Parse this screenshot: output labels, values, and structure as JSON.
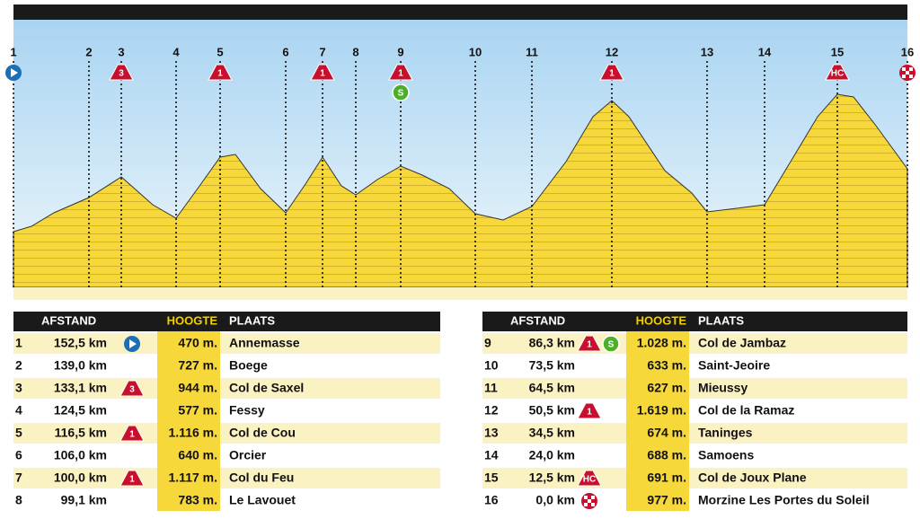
{
  "tables": [
    {
      "headers": {
        "afstand": "AFSTAND",
        "hoogte": "HOOGTE",
        "plaats": "PLAATS"
      },
      "rows": [
        {
          "nr": "1",
          "afstand": "152,5 km",
          "hoogte": "470 m.",
          "plaats": "Annemasse"
        },
        {
          "nr": "2",
          "afstand": "139,0 km",
          "hoogte": "727 m.",
          "plaats": "Boege"
        },
        {
          "nr": "3",
          "afstand": "133,1 km",
          "climb": "3",
          "hoogte": "944 m.",
          "plaats": "Col de Saxel"
        },
        {
          "nr": "4",
          "afstand": "124,5 km",
          "hoogte": "577 m.",
          "plaats": "Fessy"
        },
        {
          "nr": "5",
          "afstand": "116,5 km",
          "climb": "1",
          "hoogte": "1.116 m.",
          "plaats": "Col de Cou"
        },
        {
          "nr": "6",
          "afstand": "106,0 km",
          "hoogte": "640 m.",
          "plaats": "Orcier"
        },
        {
          "nr": "7",
          "afstand": "100,0 km",
          "climb": "1",
          "hoogte": "1.117 m.",
          "plaats": "Col du Feu"
        },
        {
          "nr": "8",
          "afstand": "99,1 km",
          "hoogte": "783 m.",
          "plaats": "Le Lavouet"
        }
      ]
    },
    {
      "headers": {
        "afstand": "AFSTAND",
        "hoogte": "HOOGTE",
        "plaats": "PLAATS"
      },
      "rows": [
        {
          "nr": "9",
          "afstand": "86,3 km",
          "climb": "1",
          "sprint": "S",
          "hoogte": "1.028 m.",
          "plaats": "Col de Jambaz"
        },
        {
          "nr": "10",
          "afstand": "73,5 km",
          "hoogte": "633 m.",
          "plaats": "Saint-Jeoire"
        },
        {
          "nr": "11",
          "afstand": "64,5 km",
          "hoogte": "627 m.",
          "plaats": "Mieussy"
        },
        {
          "nr": "12",
          "afstand": "50,5 km",
          "climb": "1",
          "hoogte": "1.619 m.",
          "plaats": "Col de la Ramaz"
        },
        {
          "nr": "13",
          "afstand": "34,5 km",
          "hoogte": "674 m.",
          "plaats": "Taninges"
        },
        {
          "nr": "14",
          "afstand": "24,0 km",
          "hoogte": "688 m.",
          "plaats": "Samoens"
        },
        {
          "nr": "15",
          "afstand": "12,5 km",
          "climb": "HC",
          "hoogte": "691 m.",
          "plaats": "Col de Joux Plane"
        },
        {
          "nr": "16",
          "afstand": "0,0 km",
          "hoogte": "977 m.",
          "plaats": "Morzine Les Portes du Soleil"
        }
      ]
    }
  ]
}
